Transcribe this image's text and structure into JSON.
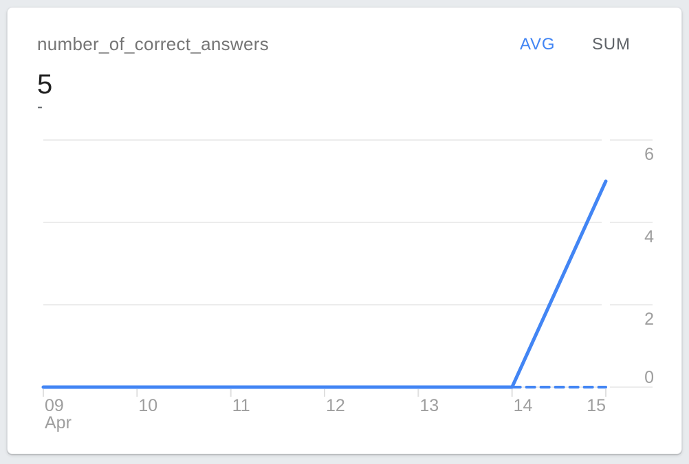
{
  "page": {
    "background_color": "#e8ebee"
  },
  "card": {
    "title": "number_of_correct_answers",
    "aggregation_toggle": {
      "options": [
        {
          "label": "AVG",
          "active": true
        },
        {
          "label": "SUM",
          "active": false
        }
      ]
    },
    "primary_value": "5",
    "secondary_value": "-"
  },
  "colors": {
    "accent_blue": "#4285f4",
    "title_gray": "#757575",
    "inactive_toggle_gray": "#5f6368",
    "value_dark": "#212121",
    "axis_label_gray": "#9e9e9e",
    "gridline_gray": "#ececec",
    "tick_gray": "#e0e0e0",
    "card_background": "#ffffff"
  },
  "chart_data": {
    "type": "line",
    "title": "number_of_correct_answers",
    "x_categories": [
      "09",
      "10",
      "11",
      "12",
      "13",
      "14",
      "15"
    ],
    "x_month_label": "Apr",
    "y_ticks": [
      0,
      2,
      4,
      6
    ],
    "ylim": [
      0,
      6
    ],
    "grid": true,
    "y_axis_position": "right",
    "legend": "none",
    "series": [
      {
        "name": "daily_value",
        "style": "solid",
        "color": "#4285f4",
        "width": 5,
        "values": [
          0,
          0,
          0,
          0,
          0,
          0,
          5
        ]
      },
      {
        "name": "incomplete_period_baseline",
        "style": "dashed",
        "color": "#4285f4",
        "width": 4,
        "values": [
          null,
          null,
          null,
          null,
          null,
          0,
          0
        ]
      }
    ]
  }
}
